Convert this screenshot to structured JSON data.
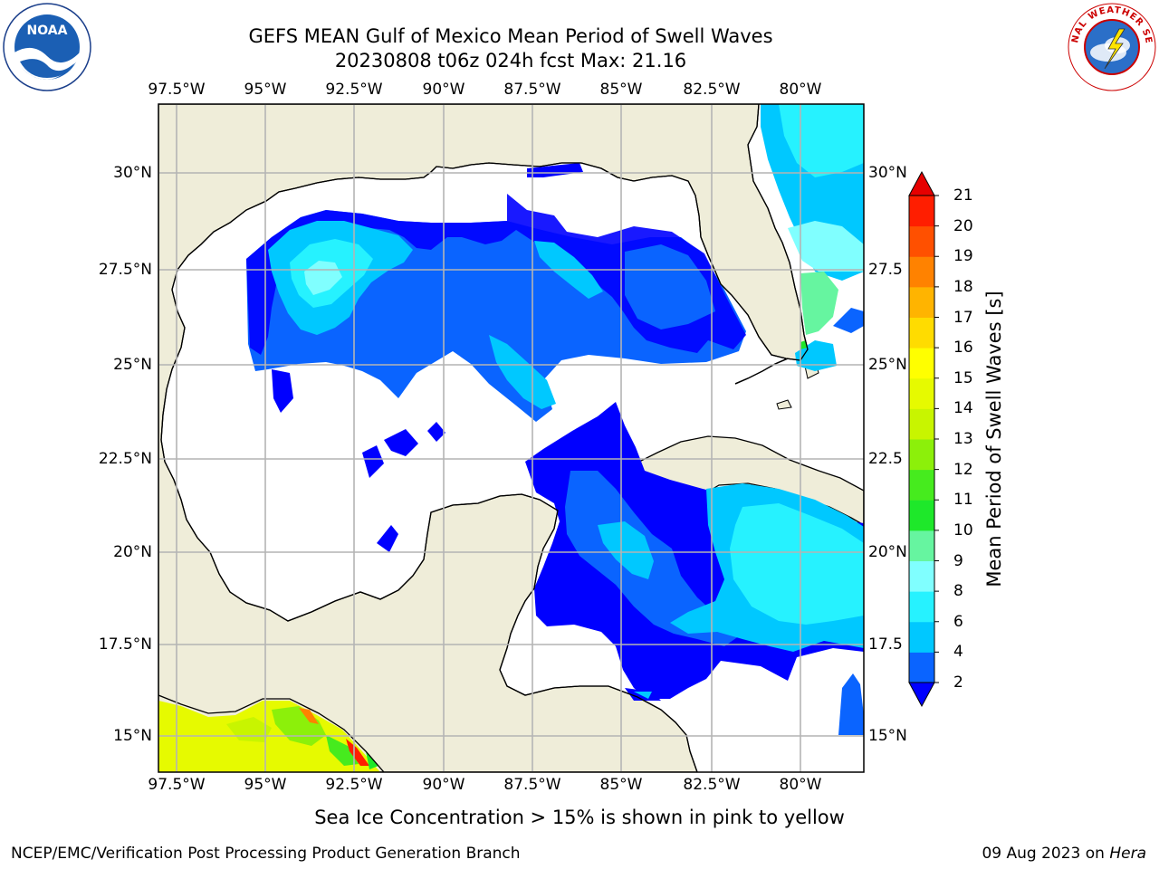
{
  "title": {
    "line1": "GEFS MEAN Gulf of Mexico Mean Period of Swell Waves",
    "line2": "20230808 t06z 024h fcst   Max: 21.16"
  },
  "map": {
    "lon_labels": [
      "97.5°W",
      "95°W",
      "92.5°W",
      "90°W",
      "87.5°W",
      "85°W",
      "82.5°W",
      "80°W"
    ],
    "lat_labels_left": [
      "30°N",
      "27.5°N",
      "25°N",
      "22.5°N",
      "20°N",
      "17.5°N",
      "15°N"
    ],
    "lat_labels_right": [
      "30°N",
      "27.5",
      "25°N",
      "22.5",
      "20°N",
      "17.5",
      "15°N"
    ],
    "extent": {
      "lon": [
        -98.0,
        -78.2
      ],
      "lat": [
        14.0,
        31.8
      ]
    },
    "land_color": "#efedd9",
    "grid_color": "#b4b4b4"
  },
  "colorbar": {
    "label": "Mean Period of Swell Waves [s]",
    "ticks": [
      "2",
      "4",
      "6",
      "8",
      "9",
      "10",
      "11",
      "12",
      "13",
      "14",
      "15",
      "16",
      "17",
      "18",
      "19",
      "20",
      "21"
    ],
    "colors": [
      "#0000ff",
      "#0a64ff",
      "#00c8ff",
      "#26f2ff",
      "#80ffff",
      "#66f5a0",
      "#1ee82a",
      "#46eb1e",
      "#8cf00a",
      "#c8f500",
      "#e6fa00",
      "#ffff00",
      "#ffdc00",
      "#ffb400",
      "#ff8200",
      "#ff5000",
      "#ff1e00",
      "#e60000"
    ]
  },
  "note": "Sea Ice Concentration > 15% is shown in pink to yellow",
  "footer": {
    "left": "NCEP/EMC/Verification Post Processing Product Generation Branch",
    "date": "09 Aug 2023 on ",
    "host": "Hera"
  },
  "logos": {
    "noaa": "NOAA",
    "nws": "NATIONAL WEATHER SERVICE"
  }
}
